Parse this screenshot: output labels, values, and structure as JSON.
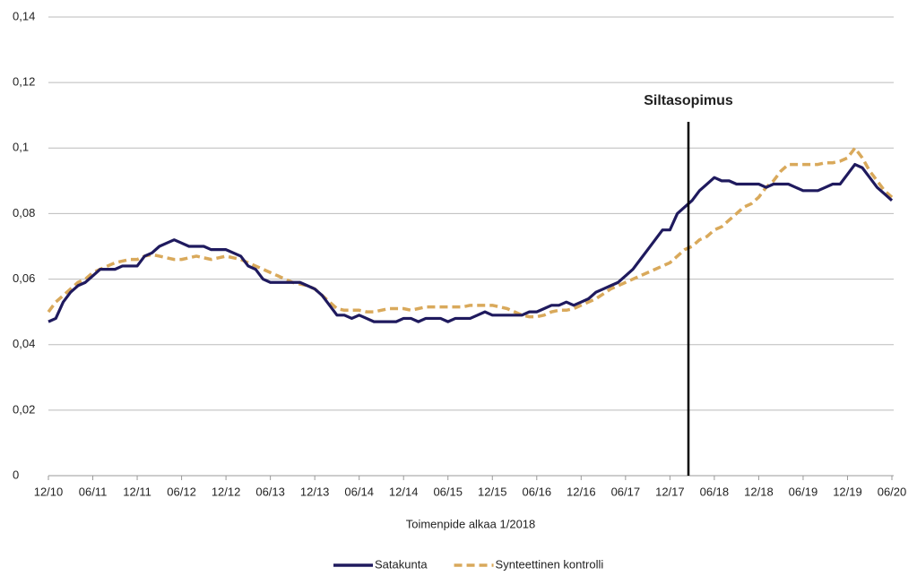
{
  "chart_data": {
    "type": "line",
    "xlabel": "Toimenpide alkaa 1/2018",
    "categories": [
      "12/10",
      null,
      null,
      null,
      null,
      null,
      "06/11",
      null,
      null,
      null,
      null,
      null,
      "12/11",
      null,
      null,
      null,
      null,
      null,
      "06/12",
      null,
      null,
      null,
      null,
      null,
      "12/12",
      null,
      null,
      null,
      null,
      null,
      "06/13",
      null,
      null,
      null,
      null,
      null,
      "12/13",
      null,
      null,
      null,
      null,
      null,
      "06/14",
      null,
      null,
      null,
      null,
      null,
      "12/14",
      null,
      null,
      null,
      null,
      null,
      "06/15",
      null,
      null,
      null,
      null,
      null,
      "12/15",
      null,
      null,
      null,
      null,
      null,
      "06/16",
      null,
      null,
      null,
      null,
      null,
      "12/16",
      null,
      null,
      null,
      null,
      null,
      "06/17",
      null,
      null,
      null,
      null,
      null,
      "12/17",
      null,
      null,
      null,
      null,
      null,
      "06/18",
      null,
      null,
      null,
      null,
      null,
      "12/18",
      null,
      null,
      null,
      null,
      null,
      "06/19",
      null,
      null,
      null,
      null,
      null,
      "12/19",
      null,
      null,
      null,
      null,
      null,
      "06/20"
    ],
    "series": [
      {
        "name": "Satakunta",
        "color": "#1f1a5e",
        "dash": false,
        "values": [
          0.047,
          0.048,
          0.053,
          0.056,
          0.058,
          0.059,
          0.061,
          0.063,
          0.063,
          0.063,
          0.064,
          0.064,
          0.064,
          0.067,
          0.068,
          0.07,
          0.071,
          0.072,
          0.071,
          0.07,
          0.07,
          0.07,
          0.069,
          0.069,
          0.069,
          0.068,
          0.067,
          0.064,
          0.063,
          0.06,
          0.059,
          0.059,
          0.059,
          0.059,
          0.059,
          0.058,
          0.057,
          0.055,
          0.052,
          0.049,
          0.049,
          0.048,
          0.049,
          0.048,
          0.047,
          0.047,
          0.047,
          0.047,
          0.048,
          0.048,
          0.047,
          0.048,
          0.048,
          0.048,
          0.047,
          0.048,
          0.048,
          0.048,
          0.049,
          0.05,
          0.049,
          0.049,
          0.049,
          0.049,
          0.049,
          0.05,
          0.05,
          0.051,
          0.052,
          0.052,
          0.053,
          0.052,
          0.053,
          0.054,
          0.056,
          0.057,
          0.058,
          0.059,
          0.061,
          0.063,
          0.066,
          0.069,
          0.072,
          0.075,
          0.075,
          0.08,
          0.082,
          0.084,
          0.087,
          0.089,
          0.091,
          0.09,
          0.09,
          0.089,
          0.089,
          0.089,
          0.089,
          0.088,
          0.089,
          0.089,
          0.089,
          0.088,
          0.087,
          0.087,
          0.087,
          0.088,
          0.089,
          0.089,
          0.092,
          0.095,
          0.094,
          0.091,
          0.088,
          0.086,
          0.084
        ]
      },
      {
        "name": "Synteettinen kontrolli",
        "color": "#d9a95b",
        "dash": true,
        "values": [
          0.05,
          0.053,
          0.055,
          0.057,
          0.059,
          0.06,
          0.062,
          0.063,
          0.064,
          0.065,
          0.0655,
          0.066,
          0.066,
          0.067,
          0.0675,
          0.067,
          0.0665,
          0.066,
          0.066,
          0.0665,
          0.067,
          0.0665,
          0.066,
          0.0665,
          0.067,
          0.0665,
          0.066,
          0.065,
          0.064,
          0.063,
          0.062,
          0.061,
          0.06,
          0.059,
          0.0585,
          0.058,
          0.057,
          0.055,
          0.053,
          0.051,
          0.0505,
          0.0505,
          0.0505,
          0.05,
          0.05,
          0.0505,
          0.051,
          0.051,
          0.051,
          0.0505,
          0.051,
          0.0515,
          0.0515,
          0.0515,
          0.0515,
          0.0515,
          0.0515,
          0.052,
          0.052,
          0.052,
          0.052,
          0.0515,
          0.051,
          0.05,
          0.049,
          0.0485,
          0.0485,
          0.049,
          0.05,
          0.0505,
          0.0505,
          0.051,
          0.052,
          0.053,
          0.054,
          0.0555,
          0.057,
          0.058,
          0.059,
          0.06,
          0.061,
          0.062,
          0.063,
          0.064,
          0.065,
          0.067,
          0.069,
          0.07,
          0.072,
          0.073,
          0.075,
          0.076,
          0.078,
          0.08,
          0.082,
          0.083,
          0.085,
          0.088,
          0.09,
          0.093,
          0.095,
          0.095,
          0.095,
          0.095,
          0.095,
          0.0955,
          0.0955,
          0.096,
          0.097,
          0.1,
          0.097,
          0.093,
          0.09,
          0.087,
          0.085
        ]
      }
    ],
    "ylim": [
      0,
      0.14
    ],
    "yticks": [
      0,
      {
        "value": 0.02,
        "label": "0,02"
      },
      {
        "value": 0.04,
        "label": "0,04"
      },
      {
        "value": 0.06,
        "label": "0,06"
      },
      {
        "value": 0.08,
        "label": "0,08"
      },
      {
        "value": 0.1,
        "label": "0,1"
      },
      {
        "value": 0.12,
        "label": "0,12"
      },
      {
        "value": 0.14,
        "label": "0,14"
      }
    ],
    "grid": true,
    "annotation": {
      "text": "Siltasopimus",
      "x_index": 86.5
    },
    "legend": "bottom"
  }
}
